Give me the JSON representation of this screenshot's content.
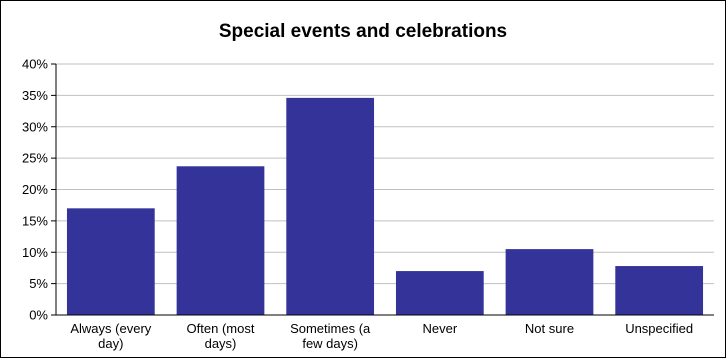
{
  "chart_data": {
    "type": "bar",
    "title": "Special events and celebrations",
    "xlabel": "",
    "ylabel": "",
    "categories": [
      [
        "Always (every",
        "day)"
      ],
      [
        "Often (most",
        "days)"
      ],
      [
        "Sometimes (a",
        "few days)"
      ],
      [
        "Never"
      ],
      [
        "Not sure"
      ],
      [
        "Unspecified"
      ]
    ],
    "values": [
      17,
      23.7,
      34.6,
      7,
      10.5,
      7.8
    ],
    "ylim": [
      0,
      40
    ],
    "yticks": [
      0,
      5,
      10,
      15,
      20,
      25,
      30,
      35,
      40
    ],
    "ytick_labels": [
      "0%",
      "5%",
      "10%",
      "15%",
      "20%",
      "25%",
      "30%",
      "35%",
      "40%"
    ],
    "grid": true,
    "legend": "none",
    "bar_color": "#333399",
    "grid_color": "#c0c0c0"
  }
}
